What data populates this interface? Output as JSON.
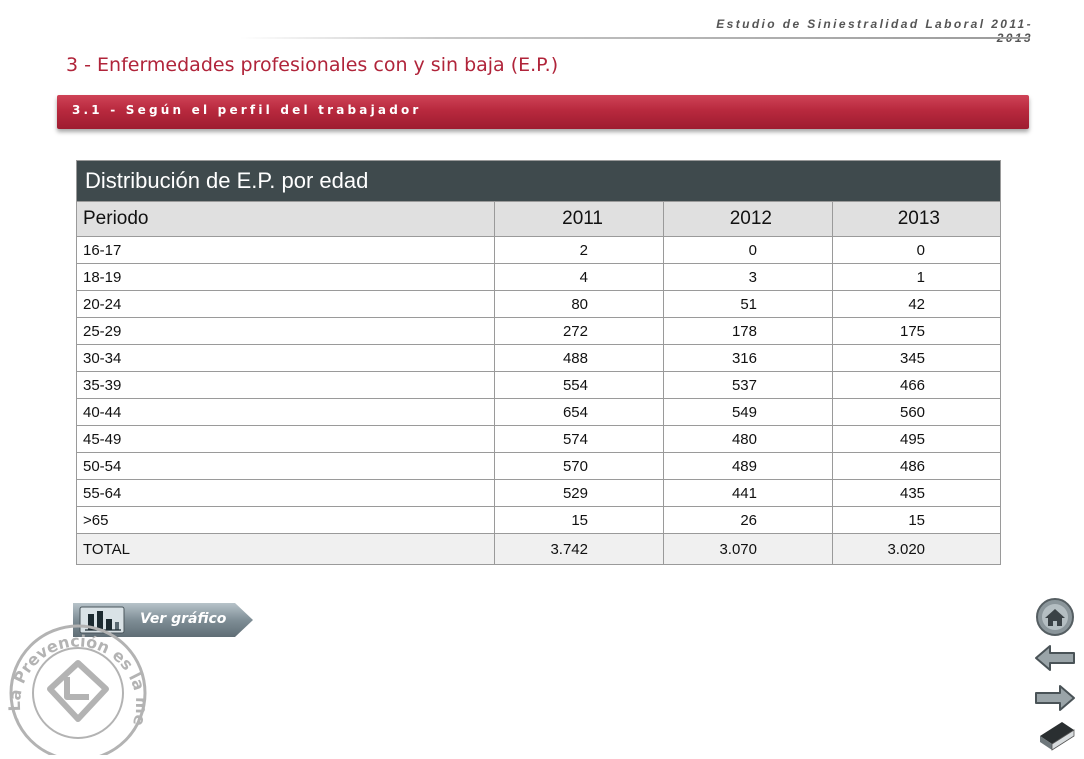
{
  "header": {
    "study_title": "Estudio de Siniestralidad Laboral 2011-2013"
  },
  "page": {
    "title": "3 - Enfermedades profesionales con y sin baja (E.P.)",
    "section": "3.1 - Según el perfil del trabajador"
  },
  "table": {
    "caption": "Distribución de E.P. por edad",
    "columns": [
      "Periodo",
      "2011",
      "2012",
      "2013"
    ],
    "rows": [
      [
        "16-17",
        "2",
        "0",
        "0"
      ],
      [
        "18-19",
        "4",
        "3",
        "1"
      ],
      [
        "20-24",
        "80",
        "51",
        "42"
      ],
      [
        "25-29",
        "272",
        "178",
        "175"
      ],
      [
        "30-34",
        "488",
        "316",
        "345"
      ],
      [
        "35-39",
        "554",
        "537",
        "466"
      ],
      [
        "40-44",
        "654",
        "549",
        "560"
      ],
      [
        "45-49",
        "574",
        "480",
        "495"
      ],
      [
        "50-54",
        "570",
        "489",
        "486"
      ],
      [
        "55-64",
        "529",
        "441",
        "435"
      ],
      [
        ">65",
        "15",
        "26",
        "15"
      ]
    ],
    "total": [
      "TOTAL",
      "3.742",
      "3.070",
      "3.020"
    ]
  },
  "chart_button": {
    "label": "Ver gráfico",
    "icon": "bar-chart-icon"
  },
  "seal": {
    "text": "- La Prevención es la mejor medida -"
  },
  "nav": {
    "home_icon": "home-icon",
    "back_icon": "arrow-left-icon",
    "forward_icon": "arrow-right-icon",
    "index_icon": "book-icon"
  },
  "colors": {
    "accent": "#b0243a",
    "section_bar": "#b8293e",
    "table_caption_bg": "#3f4a4d",
    "table_header_bg": "#e0e0e0"
  }
}
